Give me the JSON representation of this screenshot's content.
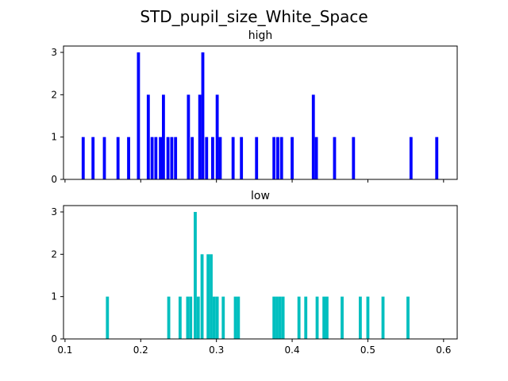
{
  "chart_data": {
    "type": "bar",
    "suptitle": "STD_pupil_size_White_Space",
    "x_ticks": [
      "0.1",
      "0.2",
      "0.3",
      "0.4",
      "0.5",
      "0.6"
    ],
    "x_tick_values": [
      0.1,
      0.2,
      0.3,
      0.4,
      0.5,
      0.6
    ],
    "xlim": [
      0.098,
      0.618
    ],
    "bin_width": 0.004,
    "panels": [
      {
        "title": "high",
        "color": "#0000ff",
        "ylim": [
          0,
          3.15
        ],
        "y_ticks": [
          "0",
          "1",
          "2",
          "3"
        ],
        "y_tick_values": [
          0,
          1,
          2,
          3
        ],
        "show_x_tick_labels": false,
        "bars": [
          {
            "x": 0.124,
            "count": 1
          },
          {
            "x": 0.137,
            "count": 1
          },
          {
            "x": 0.152,
            "count": 1
          },
          {
            "x": 0.17,
            "count": 1
          },
          {
            "x": 0.184,
            "count": 1
          },
          {
            "x": 0.197,
            "count": 3
          },
          {
            "x": 0.21,
            "count": 2
          },
          {
            "x": 0.215,
            "count": 1
          },
          {
            "x": 0.22,
            "count": 1
          },
          {
            "x": 0.226,
            "count": 1
          },
          {
            "x": 0.23,
            "count": 2
          },
          {
            "x": 0.236,
            "count": 1
          },
          {
            "x": 0.241,
            "count": 1
          },
          {
            "x": 0.246,
            "count": 1
          },
          {
            "x": 0.263,
            "count": 2
          },
          {
            "x": 0.268,
            "count": 1
          },
          {
            "x": 0.278,
            "count": 2
          },
          {
            "x": 0.282,
            "count": 3
          },
          {
            "x": 0.287,
            "count": 1
          },
          {
            "x": 0.295,
            "count": 1
          },
          {
            "x": 0.301,
            "count": 2
          },
          {
            "x": 0.305,
            "count": 1
          },
          {
            "x": 0.322,
            "count": 1
          },
          {
            "x": 0.333,
            "count": 1
          },
          {
            "x": 0.353,
            "count": 1
          },
          {
            "x": 0.376,
            "count": 1
          },
          {
            "x": 0.381,
            "count": 1
          },
          {
            "x": 0.386,
            "count": 1
          },
          {
            "x": 0.4,
            "count": 1
          },
          {
            "x": 0.428,
            "count": 2
          },
          {
            "x": 0.432,
            "count": 1
          },
          {
            "x": 0.456,
            "count": 1
          },
          {
            "x": 0.481,
            "count": 1
          },
          {
            "x": 0.557,
            "count": 1
          },
          {
            "x": 0.591,
            "count": 1
          }
        ]
      },
      {
        "title": "low",
        "color": "#00bfbf",
        "ylim": [
          0,
          3.15
        ],
        "y_ticks": [
          "0",
          "1",
          "2",
          "3"
        ],
        "y_tick_values": [
          0,
          1,
          2,
          3
        ],
        "show_x_tick_labels": true,
        "bars": [
          {
            "x": 0.156,
            "count": 1
          },
          {
            "x": 0.237,
            "count": 1
          },
          {
            "x": 0.252,
            "count": 1
          },
          {
            "x": 0.262,
            "count": 1
          },
          {
            "x": 0.266,
            "count": 1
          },
          {
            "x": 0.272,
            "count": 3
          },
          {
            "x": 0.276,
            "count": 1
          },
          {
            "x": 0.281,
            "count": 2
          },
          {
            "x": 0.289,
            "count": 2
          },
          {
            "x": 0.293,
            "count": 2
          },
          {
            "x": 0.297,
            "count": 1
          },
          {
            "x": 0.301,
            "count": 1
          },
          {
            "x": 0.309,
            "count": 1
          },
          {
            "x": 0.325,
            "count": 1
          },
          {
            "x": 0.329,
            "count": 1
          },
          {
            "x": 0.376,
            "count": 1
          },
          {
            "x": 0.38,
            "count": 1
          },
          {
            "x": 0.384,
            "count": 1
          },
          {
            "x": 0.388,
            "count": 1
          },
          {
            "x": 0.409,
            "count": 1
          },
          {
            "x": 0.418,
            "count": 1
          },
          {
            "x": 0.433,
            "count": 1
          },
          {
            "x": 0.442,
            "count": 1
          },
          {
            "x": 0.446,
            "count": 1
          },
          {
            "x": 0.466,
            "count": 1
          },
          {
            "x": 0.49,
            "count": 1
          },
          {
            "x": 0.5,
            "count": 1
          },
          {
            "x": 0.52,
            "count": 1
          },
          {
            "x": 0.553,
            "count": 1
          }
        ]
      }
    ]
  }
}
